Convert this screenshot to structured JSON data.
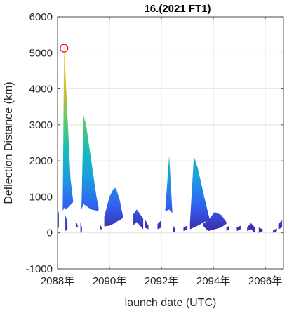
{
  "chart_data": {
    "type": "area",
    "title": "16.(2021 FT1)",
    "xlabel": "launch date (UTC)",
    "ylabel": "Deflection Distance (km)",
    "xlim": [
      2088.0,
      2096.7
    ],
    "ylim": [
      -1000,
      6000
    ],
    "grid": true,
    "xticks": [
      2088,
      2090,
      2092,
      2094,
      2096
    ],
    "xtick_labels": [
      "2088年",
      "2090年",
      "2092年",
      "2094年",
      "2096年"
    ],
    "yticks": [
      -1000,
      0,
      1000,
      2000,
      3000,
      4000,
      5000,
      6000
    ],
    "ytick_labels": [
      "-1000",
      "0",
      "1000",
      "2000",
      "3000",
      "4000",
      "5000",
      "6000"
    ],
    "colormap": [
      "#3d26a8",
      "#2f62f0",
      "#1d9be0",
      "#14bcbb",
      "#55c874",
      "#b9c038",
      "#f2c12d",
      "#f9e71e"
    ],
    "marker": {
      "x": 2088.25,
      "y": 5130,
      "shape": "circle",
      "color": "#ff0000"
    },
    "series": [
      {
        "x": [
          2087.95,
          2088.05
        ],
        "upper": [
          400,
          600
        ],
        "lower": [
          100,
          150
        ]
      },
      {
        "x": [
          2088.2,
          2088.25,
          2088.3,
          2088.4,
          2088.5,
          2088.6
        ],
        "upper": [
          750,
          5130,
          4500,
          3000,
          1500,
          900
        ],
        "lower": [
          600,
          700,
          650,
          700,
          780,
          850
        ]
      },
      {
        "x": [
          2088.3,
          2088.38
        ],
        "upper": [
          500,
          300
        ],
        "lower": [
          50,
          100
        ]
      },
      {
        "x": [
          2088.7,
          2088.78
        ],
        "upper": [
          350,
          200
        ],
        "lower": [
          150,
          150
        ]
      },
      {
        "x": [
          2088.92,
          2089.0,
          2089.1,
          2089.3,
          2089.5,
          2089.58
        ],
        "upper": [
          700,
          3270,
          3000,
          2000,
          1000,
          700
        ],
        "lower": [
          650,
          800,
          750,
          650,
          620,
          600
        ]
      },
      {
        "x": [
          2088.88,
          2088.94
        ],
        "upper": [
          300,
          150
        ],
        "lower": [
          0,
          50
        ]
      },
      {
        "x": [
          2089.62,
          2089.7
        ],
        "upper": [
          250,
          150
        ],
        "lower": [
          100,
          100
        ]
      },
      {
        "x": [
          2089.8,
          2090.0,
          2090.15,
          2090.25,
          2090.4,
          2090.52
        ],
        "upper": [
          450,
          1000,
          1220,
          1250,
          900,
          450
        ],
        "lower": [
          180,
          200,
          250,
          300,
          350,
          420
        ]
      },
      {
        "x": [
          2090.9,
          2091.05,
          2091.3
        ],
        "upper": [
          500,
          650,
          400
        ],
        "lower": [
          200,
          300,
          100
        ]
      },
      {
        "x": [
          2091.35,
          2091.5
        ],
        "upper": [
          400,
          200
        ],
        "lower": [
          150,
          100
        ]
      },
      {
        "x": [
          2091.85,
          2092.0
        ],
        "upper": [
          250,
          350
        ],
        "lower": [
          100,
          150
        ]
      },
      {
        "x": [
          2092.15,
          2092.3,
          2092.42
        ],
        "upper": [
          650,
          2150,
          600
        ],
        "lower": [
          600,
          650,
          550
        ]
      },
      {
        "x": [
          2092.45,
          2092.52
        ],
        "upper": [
          200,
          120
        ],
        "lower": [
          0,
          50
        ]
      },
      {
        "x": [
          2092.85,
          2093.0
        ],
        "upper": [
          150,
          200
        ],
        "lower": [
          50,
          100
        ]
      },
      {
        "x": [
          2093.1,
          2093.25,
          2093.4,
          2093.65,
          2093.85
        ],
        "upper": [
          300,
          2130,
          1800,
          1000,
          400
        ],
        "lower": [
          100,
          150,
          200,
          300,
          350
        ]
      },
      {
        "x": [
          2093.6,
          2093.8,
          2094.05,
          2094.3,
          2094.5
        ],
        "upper": [
          250,
          350,
          580,
          500,
          300
        ],
        "lower": [
          200,
          50,
          100,
          150,
          250
        ]
      },
      {
        "x": [
          2094.5,
          2094.62
        ],
        "upper": [
          150,
          200
        ],
        "lower": [
          50,
          100
        ]
      },
      {
        "x": [
          2094.9,
          2095.05
        ],
        "upper": [
          150,
          200
        ],
        "lower": [
          50,
          100
        ]
      },
      {
        "x": [
          2095.3,
          2095.45,
          2095.6
        ],
        "upper": [
          150,
          270,
          150
        ],
        "lower": [
          50,
          100,
          0
        ]
      },
      {
        "x": [
          2095.75,
          2095.9
        ],
        "upper": [
          150,
          100
        ],
        "lower": [
          0,
          50
        ]
      },
      {
        "x": [
          2096.3,
          2096.45
        ],
        "upper": [
          80,
          120
        ],
        "lower": [
          0,
          50
        ]
      },
      {
        "x": [
          2096.5,
          2096.65
        ],
        "upper": [
          250,
          350
        ],
        "lower": [
          100,
          150
        ]
      }
    ]
  }
}
